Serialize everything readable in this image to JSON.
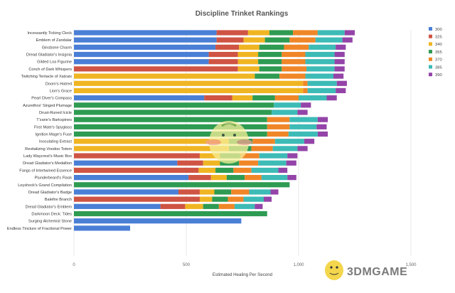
{
  "chart_data": {
    "type": "bar",
    "orientation": "horizontal",
    "stacked": true,
    "title": "Discipline Trinket Rankings",
    "xlabel": "Estimated Healing Per Second",
    "ylabel": "",
    "xlim": [
      0,
      1500
    ],
    "xticks": [
      0,
      500,
      1000,
      1500
    ],
    "xtick_labels": [
      "0",
      "500",
      "1,000",
      "1,500"
    ],
    "grid": true,
    "legend_position": "right",
    "categories": [
      "Incessantly Ticking Clock",
      "Emblem of Zandalar",
      "Ginsbone Charm",
      "Dread Gladiator's Insignia",
      "Gilded Loa Figurine",
      "Conch of Dark Whispers",
      "Twitching Tentacle of Xalzaix",
      "Doom's Hatred",
      "Lion's Grace",
      "Pearl Diver's Compass",
      "Azurethos' Singed Plumage",
      "Drust-Runed Icicle",
      "T'zane's Barkspines",
      "First Mate's Spyglass",
      "Ignition Mage's Fuse",
      "Inoculating Extract",
      "Revitalizing Voodoo Totem",
      "Lady Waycrest's Music Box",
      "Dread Gladiator's Medallion",
      "Fangs of Intertwined Essence",
      "Plunderbeard's Flask",
      "Leyshock's Grand Compilation",
      "Dread Gladiator's Badge",
      "Balefire Branch",
      "Dread Gladiator's Emblem",
      "Darkmoon Deck: Tides",
      "Surging Alchemist Stone",
      "Endless Tincture of Fractional Power"
    ],
    "series": [
      {
        "name": "300",
        "color": "#4a7fd6",
        "values": [
          635,
          635,
          630,
          600,
          600,
          0,
          0,
          0,
          0,
          580,
          0,
          0,
          0,
          0,
          0,
          0,
          0,
          0,
          460,
          0,
          510,
          0,
          465,
          0,
          385,
          0,
          745,
          250
        ]
      },
      {
        "name": "325",
        "color": "#cf5443",
        "values": [
          140,
          120,
          105,
          130,
          130,
          730,
          0,
          0,
          0,
          125,
          0,
          0,
          0,
          0,
          0,
          0,
          0,
          560,
          115,
          555,
          100,
          0,
          95,
          560,
          110,
          0,
          0,
          0
        ]
      },
      {
        "name": "340",
        "color": "#f0b522",
        "values": [
          95,
          95,
          90,
          90,
          90,
          95,
          805,
          1020,
          1020,
          90,
          0,
          0,
          0,
          0,
          0,
          690,
          690,
          90,
          75,
          75,
          70,
          0,
          65,
          55,
          80,
          0,
          0,
          0
        ]
      },
      {
        "name": "355",
        "color": "#2e9b52",
        "values": [
          105,
          110,
          110,
          105,
          105,
          100,
          110,
          0,
          0,
          100,
          890,
          880,
          860,
          860,
          860,
          105,
          100,
          90,
          85,
          80,
          80,
          960,
          75,
          70,
          70,
          860,
          0,
          0
        ]
      },
      {
        "name": "370",
        "color": "#f08628",
        "values": [
          110,
          115,
          110,
          105,
          105,
          110,
          115,
          20,
          20,
          105,
          0,
          0,
          100,
          100,
          95,
          100,
          95,
          85,
          85,
          80,
          75,
          0,
          80,
          70,
          70,
          0,
          0,
          0
        ]
      },
      {
        "name": "385",
        "color": "#3dbbb6",
        "values": [
          120,
          120,
          120,
          130,
          130,
          125,
          125,
          130,
          125,
          125,
          120,
          115,
          125,
          120,
          130,
          130,
          110,
          125,
          125,
          120,
          115,
          0,
          95,
          90,
          90,
          0,
          0,
          0
        ]
      },
      {
        "name": "390",
        "color": "#9444a8",
        "values": [
          45,
          45,
          45,
          45,
          45,
          45,
          45,
          45,
          45,
          45,
          45,
          45,
          45,
          45,
          45,
          45,
          45,
          45,
          45,
          40,
          40,
          0,
          35,
          35,
          35,
          0,
          0,
          0
        ]
      }
    ]
  },
  "watermark": {
    "text": "3DMGAME"
  }
}
